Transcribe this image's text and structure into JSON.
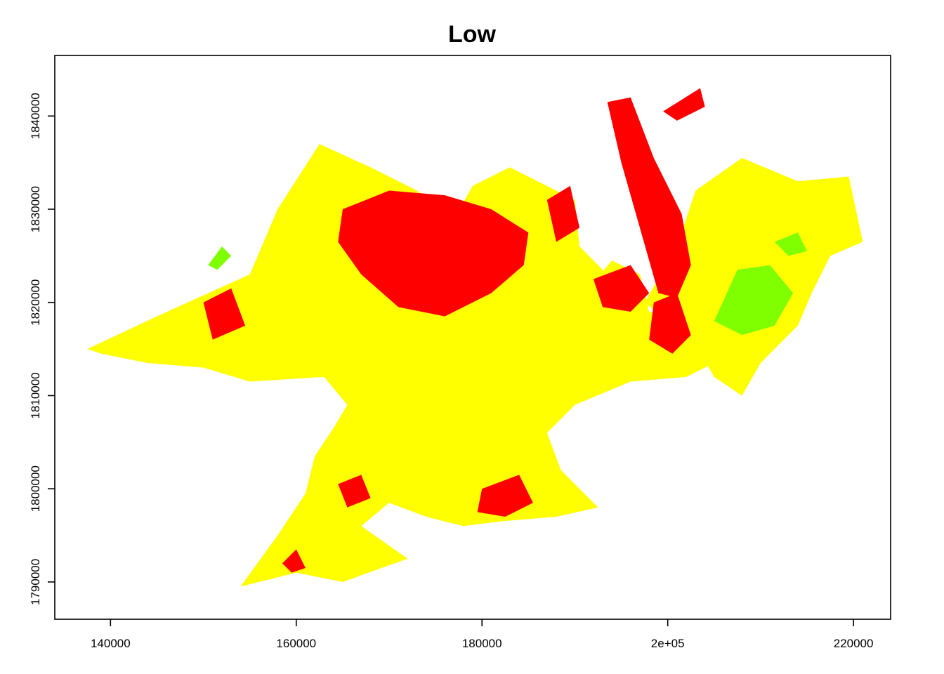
{
  "title": "Low",
  "colors": {
    "high_class": "#ff0000",
    "mid_class": "#ffff00",
    "low_class": "#7fff00",
    "background": "#ffffff",
    "frame": "#000000"
  },
  "axes": {
    "x": {
      "range": [
        134000,
        224000
      ],
      "ticks": [
        {
          "value": 140000,
          "label": "140000"
        },
        {
          "value": 160000,
          "label": "160000"
        },
        {
          "value": 180000,
          "label": "180000"
        },
        {
          "value": 200000,
          "label": "2e+05"
        },
        {
          "value": 220000,
          "label": "220000"
        }
      ]
    },
    "y": {
      "range": [
        1786000,
        1846500
      ],
      "ticks": [
        {
          "value": 1790000,
          "label": "1790000"
        },
        {
          "value": 1800000,
          "label": "1800000"
        },
        {
          "value": 1810000,
          "label": "1810000"
        },
        {
          "value": 1820000,
          "label": "1820000"
        },
        {
          "value": 1830000,
          "label": "1830000"
        },
        {
          "value": 1840000,
          "label": "1840000"
        }
      ]
    }
  },
  "regions": [
    {
      "class": "mid_class",
      "points": [
        [
          137500,
          1815000
        ],
        [
          145000,
          1818500
        ],
        [
          155000,
          1823000
        ],
        [
          158000,
          1830000
        ],
        [
          162500,
          1837000
        ],
        [
          168000,
          1834500
        ],
        [
          173000,
          1832000
        ],
        [
          177000,
          1829000
        ],
        [
          179000,
          1832500
        ],
        [
          183000,
          1834500
        ],
        [
          186000,
          1833000
        ],
        [
          190000,
          1831000
        ],
        [
          190500,
          1826000
        ],
        [
          193500,
          1823000
        ],
        [
          198000,
          1819000
        ],
        [
          201000,
          1818000
        ],
        [
          204000,
          1816000
        ],
        [
          206000,
          1814000
        ],
        [
          202000,
          1812000
        ],
        [
          196000,
          1811500
        ],
        [
          190000,
          1809000
        ],
        [
          187000,
          1806000
        ],
        [
          188500,
          1802000
        ],
        [
          192500,
          1798000
        ],
        [
          188000,
          1797000
        ],
        [
          182000,
          1796500
        ],
        [
          178000,
          1796000
        ],
        [
          174000,
          1797000
        ],
        [
          170000,
          1798500
        ],
        [
          167000,
          1796000
        ],
        [
          172000,
          1792500
        ],
        [
          165000,
          1790000
        ],
        [
          160000,
          1791000
        ],
        [
          154000,
          1789500
        ],
        [
          158000,
          1795000
        ],
        [
          161000,
          1799500
        ],
        [
          162000,
          1803500
        ],
        [
          164000,
          1806500
        ],
        [
          165500,
          1809000
        ],
        [
          163000,
          1812000
        ],
        [
          155000,
          1811500
        ],
        [
          150000,
          1813000
        ],
        [
          144000,
          1813500
        ],
        [
          139000,
          1814500
        ]
      ]
    },
    {
      "class": "mid_class",
      "points": [
        [
          197500,
          1820000
        ],
        [
          201000,
          1826000
        ],
        [
          203000,
          1832000
        ],
        [
          208000,
          1835500
        ],
        [
          214000,
          1833000
        ],
        [
          219500,
          1833500
        ],
        [
          221000,
          1826500
        ],
        [
          217500,
          1825000
        ],
        [
          215500,
          1821000
        ],
        [
          214000,
          1817500
        ],
        [
          210000,
          1813500
        ],
        [
          208000,
          1810000
        ],
        [
          205000,
          1812000
        ],
        [
          203000,
          1815500
        ]
      ]
    },
    {
      "class": "mid_class",
      "points": [
        [
          191000,
          1821000
        ],
        [
          194000,
          1824500
        ],
        [
          197000,
          1823000
        ],
        [
          198000,
          1819000
        ],
        [
          195000,
          1817000
        ],
        [
          192000,
          1818000
        ]
      ]
    },
    {
      "class": "low_class",
      "points": [
        [
          205000,
          1818000
        ],
        [
          207500,
          1823500
        ],
        [
          211000,
          1824000
        ],
        [
          213500,
          1821000
        ],
        [
          211500,
          1817500
        ],
        [
          208000,
          1816500
        ]
      ]
    },
    {
      "class": "low_class",
      "points": [
        [
          211500,
          1826500
        ],
        [
          214000,
          1827500
        ],
        [
          215000,
          1825500
        ],
        [
          213000,
          1825000
        ]
      ]
    },
    {
      "class": "low_class",
      "points": [
        [
          150500,
          1824000
        ],
        [
          152000,
          1826000
        ],
        [
          153000,
          1825000
        ],
        [
          151500,
          1823500
        ]
      ]
    },
    {
      "class": "high_class",
      "points": [
        [
          165000,
          1830000
        ],
        [
          170000,
          1832000
        ],
        [
          176000,
          1831500
        ],
        [
          181000,
          1830000
        ],
        [
          185000,
          1827500
        ],
        [
          184500,
          1824000
        ],
        [
          181000,
          1821000
        ],
        [
          176000,
          1818500
        ],
        [
          171000,
          1819500
        ],
        [
          167000,
          1823000
        ],
        [
          164500,
          1826500
        ]
      ]
    },
    {
      "class": "high_class",
      "points": [
        [
          187000,
          1831000
        ],
        [
          189500,
          1832500
        ],
        [
          190500,
          1828000
        ],
        [
          188000,
          1826500
        ]
      ]
    },
    {
      "class": "high_class",
      "points": [
        [
          192000,
          1822500
        ],
        [
          196000,
          1824000
        ],
        [
          198000,
          1821000
        ],
        [
          196000,
          1819000
        ],
        [
          193000,
          1819500
        ]
      ]
    },
    {
      "class": "high_class",
      "points": [
        [
          193500,
          1841500
        ],
        [
          196000,
          1842000
        ],
        [
          198500,
          1835500
        ],
        [
          201500,
          1829500
        ],
        [
          202500,
          1824000
        ],
        [
          201000,
          1820500
        ],
        [
          199000,
          1821000
        ],
        [
          197000,
          1828000
        ],
        [
          195000,
          1835000
        ]
      ]
    },
    {
      "class": "high_class",
      "points": [
        [
          198500,
          1820000
        ],
        [
          201000,
          1821000
        ],
        [
          202500,
          1816500
        ],
        [
          200500,
          1814500
        ],
        [
          198000,
          1816000
        ]
      ]
    },
    {
      "class": "high_class",
      "points": [
        [
          199500,
          1840500
        ],
        [
          203500,
          1843000
        ],
        [
          204000,
          1841000
        ],
        [
          201000,
          1839500
        ]
      ]
    },
    {
      "class": "high_class",
      "points": [
        [
          180000,
          1800000
        ],
        [
          184000,
          1801500
        ],
        [
          185500,
          1798500
        ],
        [
          182500,
          1797000
        ],
        [
          179500,
          1797500
        ]
      ]
    },
    {
      "class": "high_class",
      "points": [
        [
          164500,
          1800500
        ],
        [
          167000,
          1801500
        ],
        [
          168000,
          1799000
        ],
        [
          165500,
          1798000
        ]
      ]
    },
    {
      "class": "high_class",
      "points": [
        [
          150000,
          1820000
        ],
        [
          153000,
          1821500
        ],
        [
          154500,
          1817500
        ],
        [
          151000,
          1816000
        ]
      ]
    },
    {
      "class": "high_class",
      "points": [
        [
          158500,
          1792000
        ],
        [
          160000,
          1793500
        ],
        [
          161000,
          1791500
        ],
        [
          159500,
          1791000
        ]
      ]
    }
  ]
}
